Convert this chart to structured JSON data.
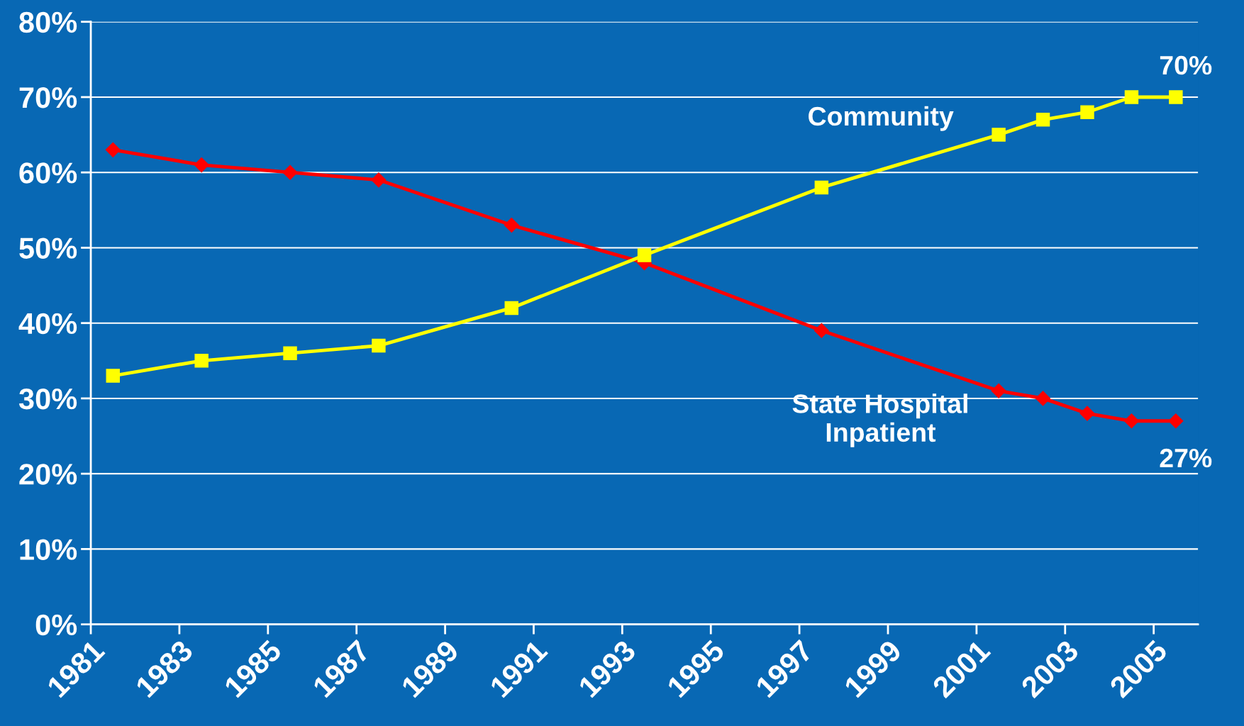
{
  "chart_data": {
    "type": "line",
    "x": [
      1981.5,
      1983.5,
      1985.5,
      1987.5,
      1990.5,
      1993.5,
      1997.5,
      2001.5,
      2002.5,
      2003.5,
      2004.5,
      2005.5
    ],
    "series": [
      {
        "name": "State Hospital\nInpatient",
        "color": "#ff0000",
        "marker": "diamond",
        "values": [
          63,
          61,
          60,
          59,
          53,
          48,
          39,
          31,
          30,
          28,
          27,
          27
        ]
      },
      {
        "name": "Community",
        "color": "#ffff00",
        "marker": "square",
        "values": [
          33,
          35,
          36,
          37,
          42,
          49,
          58,
          65,
          67,
          68,
          70,
          70
        ]
      }
    ],
    "xlim": [
      1981,
      2006
    ],
    "xticks": [
      1981,
      1983,
      1985,
      1987,
      1989,
      1991,
      1993,
      1995,
      1997,
      1999,
      2001,
      2003,
      2005
    ],
    "ylim": [
      0,
      80
    ],
    "yticks": [
      {
        "value": 0,
        "label": "0%"
      },
      {
        "value": 10,
        "label": "10%"
      },
      {
        "value": 20,
        "label": "20%"
      },
      {
        "value": 30,
        "label": "30%"
      },
      {
        "value": 40,
        "label": "40%"
      },
      {
        "value": 50,
        "label": "50%"
      },
      {
        "value": 60,
        "label": "60%"
      },
      {
        "value": 70,
        "label": "70%"
      },
      {
        "value": 80,
        "label": "80%"
      }
    ],
    "grid": "y",
    "line_style": "solid",
    "legend": false,
    "annotations": [
      {
        "text": "70%",
        "x": 2005.5,
        "y": 70
      },
      {
        "text": "27%",
        "x": 2005.5,
        "y": 27
      }
    ]
  }
}
